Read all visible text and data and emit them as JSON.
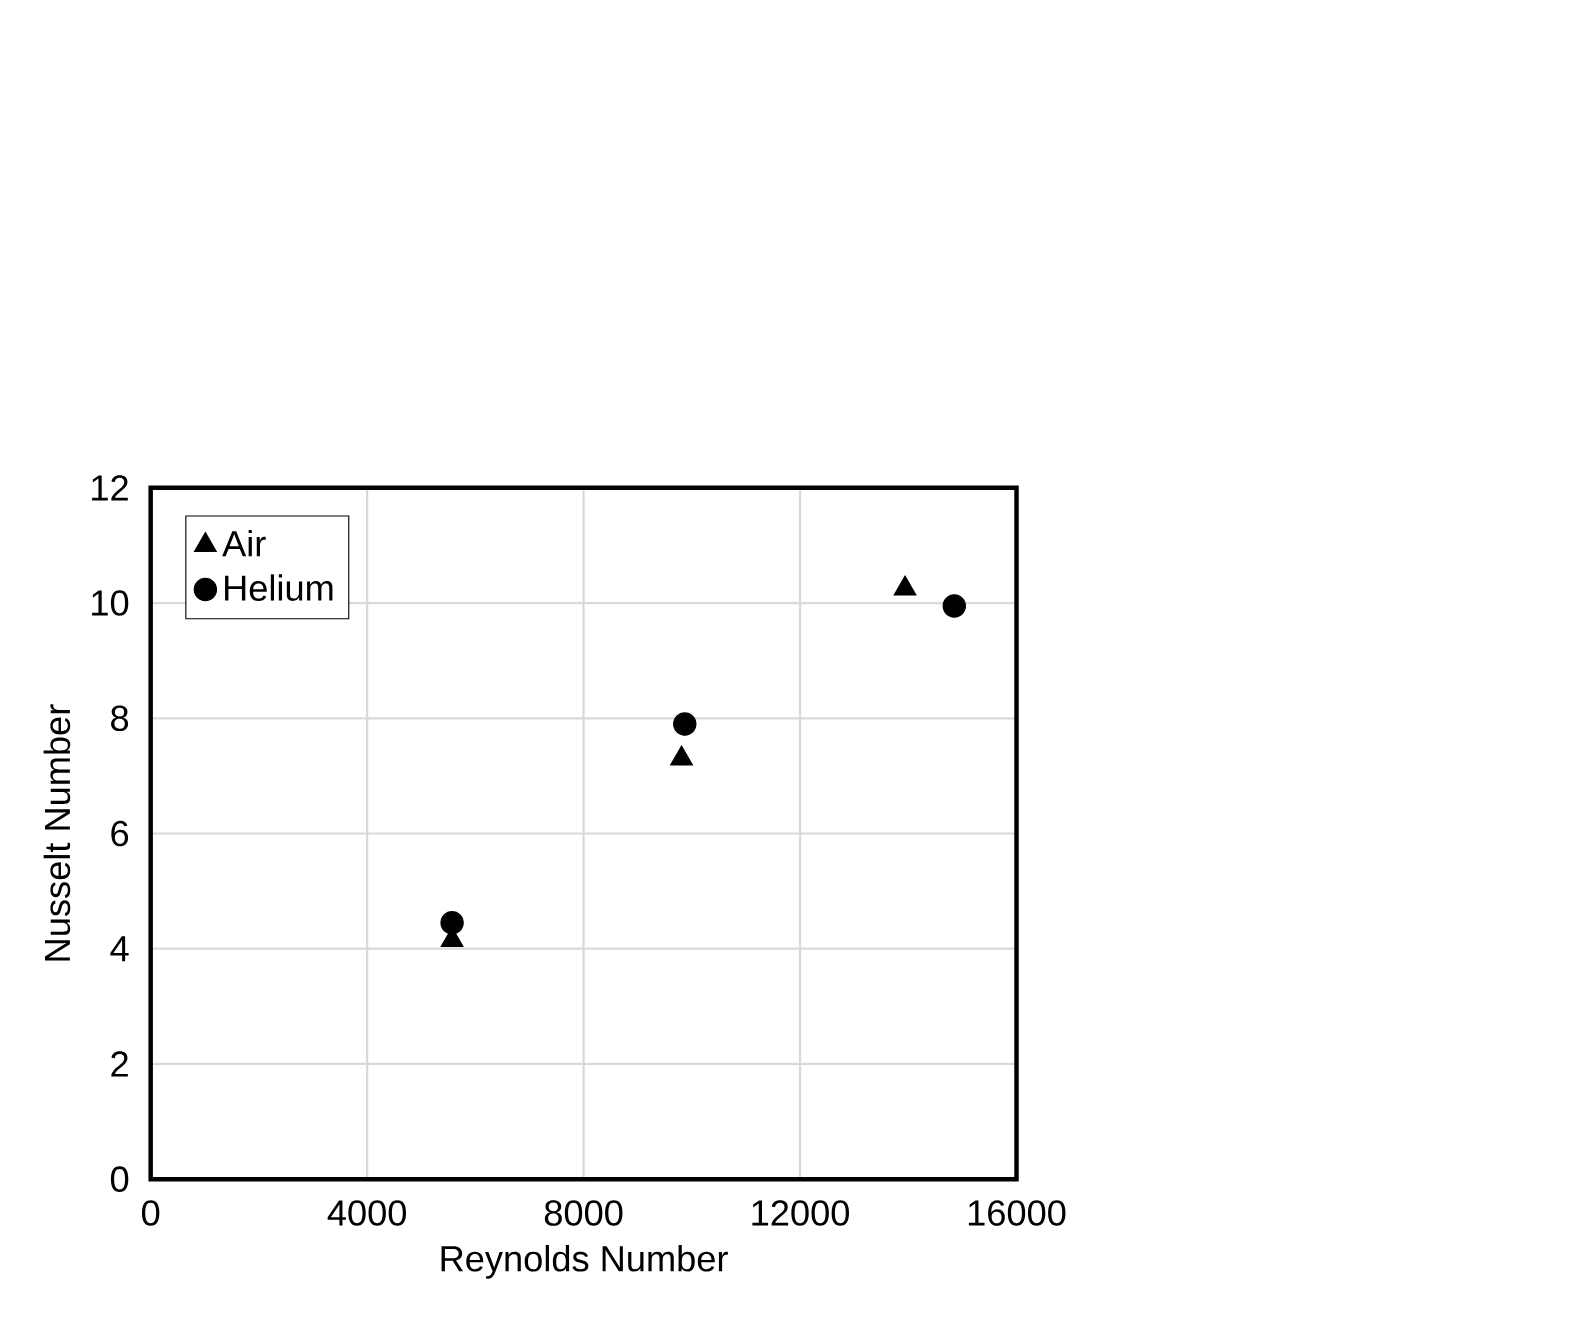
{
  "chart_data": {
    "type": "scatter",
    "xlabel": "Reynolds Number",
    "ylabel": "Nusselt Number",
    "xlim": [
      0,
      16000
    ],
    "xticks": [
      0,
      4000,
      8000,
      12000,
      16000
    ],
    "ylim": [
      0,
      12
    ],
    "yticks": [
      0,
      2,
      4,
      6,
      8,
      10,
      12
    ],
    "grid": true,
    "legend": "top left",
    "series": [
      {
        "name": "Air",
        "color": "#000000",
        "marker": "triangle",
        "x": [
          5570,
          9810,
          13940
        ],
        "values": [
          4.15,
          7.3,
          10.25
        ]
      },
      {
        "name": "Helium",
        "color": "#000000",
        "marker": "circle",
        "x": [
          5570,
          9870,
          14850
        ],
        "values": [
          4.45,
          7.9,
          9.95
        ]
      }
    ]
  }
}
